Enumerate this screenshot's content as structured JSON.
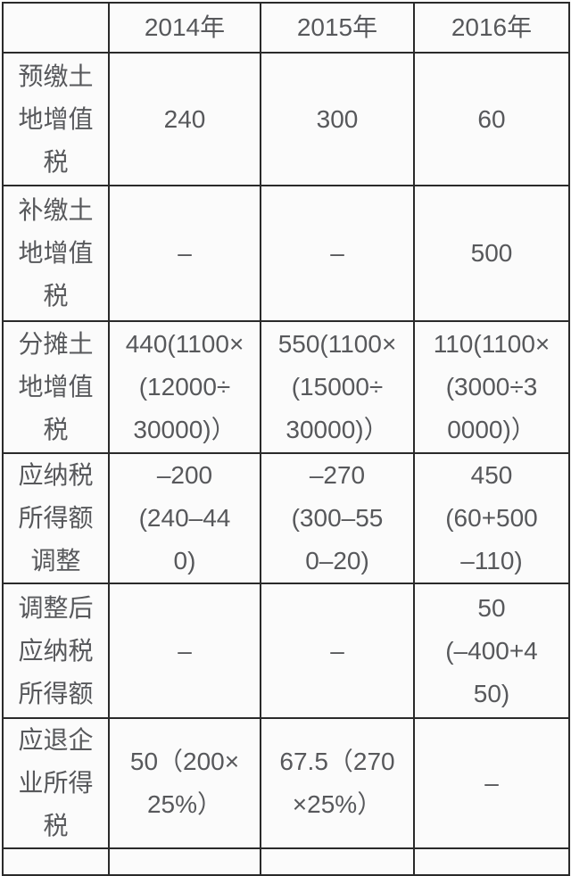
{
  "page": {
    "background_color": "#fbfbfb",
    "border_color": "#2a2a2a",
    "text_color": "#57585b"
  },
  "table": {
    "corner": "",
    "columns": [
      "2014年",
      "2015年",
      "2016年"
    ],
    "rows": [
      {
        "label": "预缴土\n地增值\n税",
        "cells": [
          "240",
          "300",
          "60"
        ]
      },
      {
        "label": "补缴土\n地增值\n税",
        "cells": [
          "–",
          "–",
          "500"
        ]
      },
      {
        "label": "分摊土\n地增值\n税",
        "cells": [
          "440(1100×\n(12000÷\n30000)）",
          "550(1100×\n(15000÷\n30000)）",
          "110(1100×\n(3000÷3\n0000)）"
        ]
      },
      {
        "label": "应纳税\n所得额\n调整",
        "cells": [
          "–200\n(240–44\n0)",
          "–270\n(300–55\n0–20)",
          "450\n(60+500\n–110)"
        ]
      },
      {
        "label": "调整后\n应纳税\n所得额",
        "cells": [
          "–",
          "–",
          "50\n(–400+4\n50)"
        ]
      },
      {
        "label": "应退企\n业所得\n税",
        "cells": [
          "50（200×\n25%）",
          "67.5（270\n×25%）",
          "–"
        ]
      }
    ]
  }
}
